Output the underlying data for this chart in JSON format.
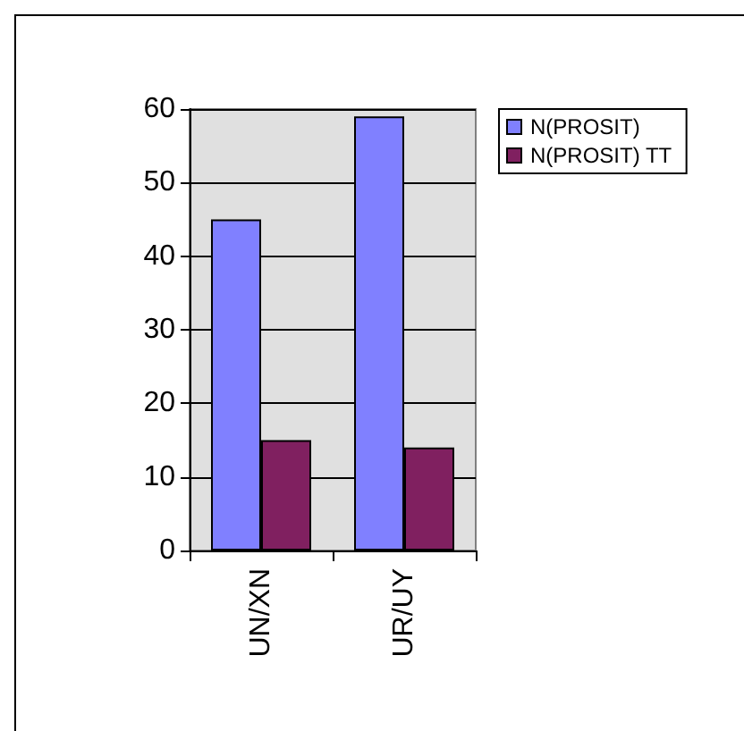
{
  "chart_data": {
    "type": "bar",
    "categories": [
      "UN/XN",
      "UR/UY"
    ],
    "series": [
      {
        "name": "N(PROSIT)",
        "color": "#8080ff",
        "values": [
          45,
          59
        ]
      },
      {
        "name": "N(PROSIT) TT",
        "color": "#802060",
        "values": [
          15,
          14
        ]
      }
    ],
    "ylim": [
      0,
      60
    ],
    "yticks": [
      0,
      10,
      20,
      30,
      40,
      50,
      60
    ],
    "grid": "y",
    "legend": "top right"
  }
}
